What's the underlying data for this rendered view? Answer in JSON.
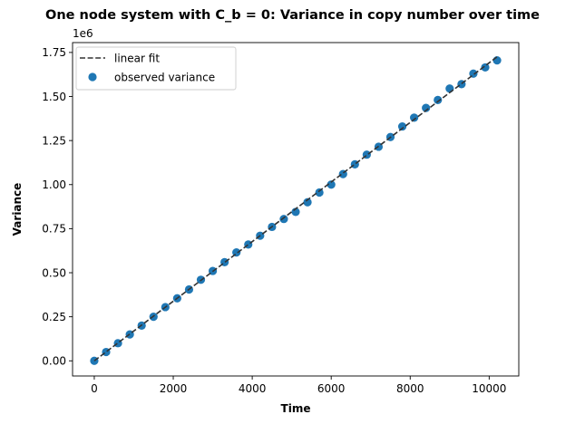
{
  "chart_data": {
    "type": "scatter",
    "title": "One node system with C_b = 0: Variance in copy number over time",
    "xlabel": "Time",
    "ylabel": "Variance",
    "y_offset_text": "1e6",
    "xlim": [
      -550,
      10750
    ],
    "ylim": [
      -0.086,
      1.806
    ],
    "x_ticks": [
      0,
      2000,
      4000,
      6000,
      8000,
      10000
    ],
    "x_tick_labels": [
      "0",
      "2000",
      "4000",
      "6000",
      "8000",
      "10000"
    ],
    "y_ticks": [
      0.0,
      0.25,
      0.5,
      0.75,
      1.0,
      1.25,
      1.5,
      1.75
    ],
    "y_tick_labels": [
      "0.00",
      "0.25",
      "0.50",
      "0.75",
      "1.00",
      "1.25",
      "1.50",
      "1.75"
    ],
    "grid": false,
    "legend_position": "top-left",
    "series": [
      {
        "name": "linear fit",
        "kind": "line",
        "style": "dashed",
        "color": "#333333",
        "x": [
          0,
          10200
        ],
        "y": [
          0.0,
          1.725
        ]
      },
      {
        "name": "observed variance",
        "kind": "scatter",
        "color": "#1f77b4",
        "x": [
          0,
          300,
          600,
          900,
          1200,
          1500,
          1800,
          2100,
          2400,
          2700,
          3000,
          3300,
          3600,
          3900,
          4200,
          4500,
          4800,
          5100,
          5400,
          5700,
          6000,
          6300,
          6600,
          6900,
          7200,
          7500,
          7800,
          8100,
          8400,
          8700,
          9000,
          9300,
          9600,
          9900,
          10200
        ],
        "y": [
          0.0,
          0.05,
          0.1,
          0.15,
          0.2,
          0.25,
          0.305,
          0.355,
          0.405,
          0.46,
          0.51,
          0.56,
          0.615,
          0.66,
          0.71,
          0.76,
          0.805,
          0.845,
          0.9,
          0.955,
          1.0,
          1.06,
          1.115,
          1.17,
          1.215,
          1.27,
          1.33,
          1.38,
          1.435,
          1.48,
          1.545,
          1.57,
          1.63,
          1.665,
          1.705
        ]
      }
    ]
  }
}
